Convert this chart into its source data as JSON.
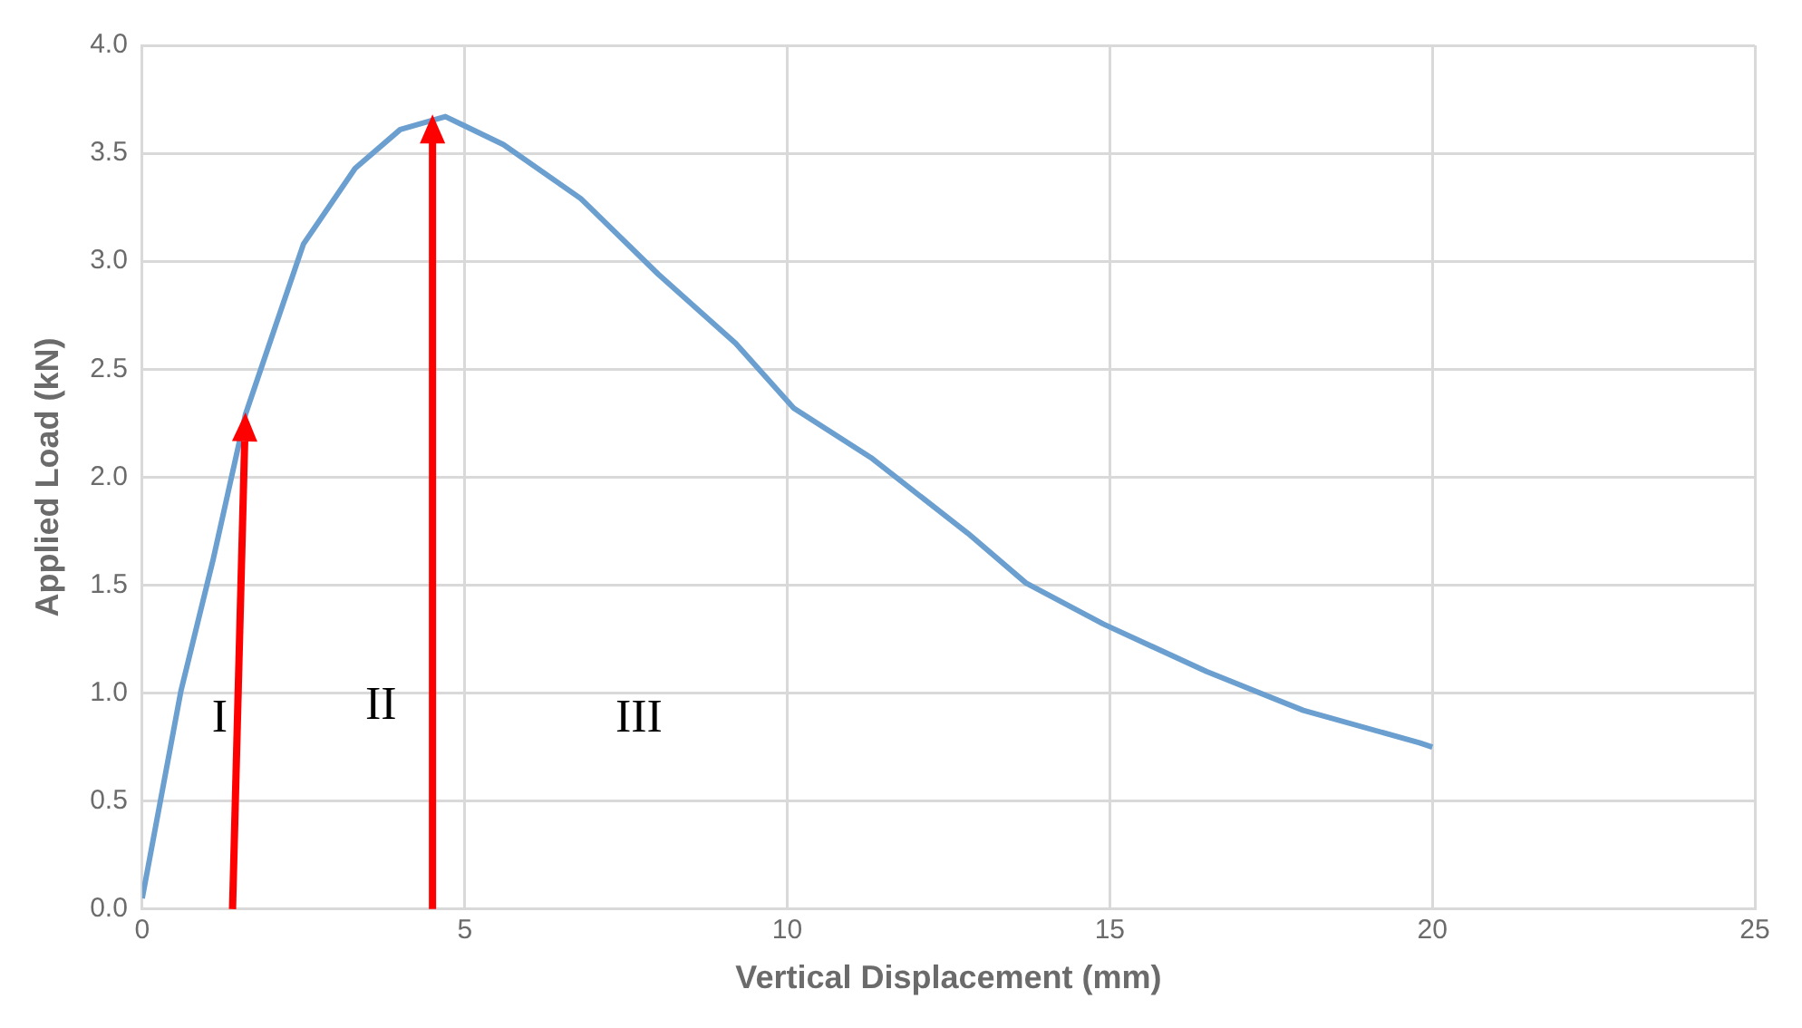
{
  "chart_data": {
    "type": "line",
    "xlabel": "Vertical Displacement (mm)",
    "ylabel": "Applied Load (kN)",
    "x": [
      0,
      0.6,
      1.1,
      1.6,
      2.1,
      2.5,
      3.3,
      4,
      4.7,
      5.6,
      6.8,
      8,
      9.2,
      10.1,
      11.3,
      12.8,
      13.7,
      14.9,
      16.5,
      18,
      19.8,
      20
    ],
    "series": [
      {
        "color": "#6a9fd0",
        "values": [
          0.05,
          1.01,
          1.62,
          2.29,
          2.73,
          3.08,
          3.43,
          3.61,
          3.67,
          3.54,
          3.29,
          2.94,
          2.62,
          2.32,
          2.09,
          1.74,
          1.51,
          1.32,
          1.1,
          0.92,
          0.77,
          0.75
        ]
      }
    ],
    "xlim": [
      0,
      25
    ],
    "xticks": [
      0,
      5,
      10,
      15,
      20,
      25
    ],
    "ylim": [
      0,
      4
    ],
    "yticks": [
      {
        "value": 0,
        "label": "0.0"
      },
      {
        "value": 0.5,
        "label": "0.5"
      },
      {
        "value": 1,
        "label": "1.0"
      },
      {
        "value": 1.5,
        "label": "1.5"
      },
      {
        "value": 2,
        "label": "2.0"
      },
      {
        "value": 2.5,
        "label": "2.5"
      },
      {
        "value": 3,
        "label": "3.0"
      },
      {
        "value": 3.5,
        "label": "3.5"
      },
      {
        "value": 4,
        "label": "4.0"
      }
    ],
    "grid": true,
    "legend": false,
    "marker": "none",
    "line_style": "solid",
    "ref_lines": [
      {
        "axis": "x",
        "value": 4.5,
        "color": "#ff0000"
      }
    ],
    "annotations": [
      "I",
      "II",
      "III"
    ]
  }
}
